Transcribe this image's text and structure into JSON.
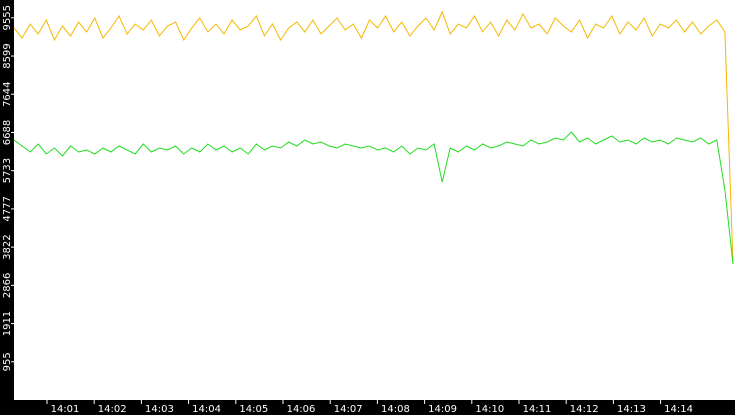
{
  "chart_data": {
    "type": "line",
    "x_labels": [
      "14:01",
      "14:02",
      "14:03",
      "14:04",
      "14:05",
      "14:06",
      "14:07",
      "14:08",
      "14:09",
      "14:10",
      "14:11",
      "14:12",
      "14:13",
      "14:14"
    ],
    "ylim": [
      0,
      10000
    ],
    "yticks": [
      955,
      1911,
      2866,
      3822,
      4777,
      5733,
      6688,
      7644,
      8599,
      9555
    ],
    "series": [
      {
        "color": "#f5b800",
        "values": [
          9300,
          9050,
          9400,
          9150,
          9500,
          9000,
          9350,
          9100,
          9450,
          9200,
          9550,
          9050,
          9300,
          9600,
          9150,
          9400,
          9250,
          9500,
          9100,
          9350,
          9450,
          9000,
          9300,
          9550,
          9200,
          9400,
          9150,
          9500,
          9250,
          9350,
          9600,
          9100,
          9400,
          9000,
          9300,
          9450,
          9200,
          9500,
          9150,
          9350,
          9550,
          9250,
          9400,
          9050,
          9500,
          9300,
          9600,
          9200,
          9450,
          9100,
          9350,
          9550,
          9250,
          9700,
          9150,
          9400,
          9300,
          9600,
          9200,
          9450,
          9100,
          9500,
          9250,
          9650,
          9300,
          9400,
          9150,
          9550,
          9350,
          9200,
          9500,
          9050,
          9400,
          9300,
          9600,
          9150,
          9450,
          9250,
          9550,
          9100,
          9400,
          9300,
          9500,
          9200,
          9450,
          9150,
          9350,
          9500,
          9200,
          3400
        ]
      },
      {
        "color": "#22dd22",
        "values": [
          6500,
          6350,
          6200,
          6400,
          6150,
          6300,
          6100,
          6350,
          6200,
          6250,
          6150,
          6300,
          6200,
          6350,
          6250,
          6150,
          6400,
          6200,
          6300,
          6250,
          6350,
          6150,
          6300,
          6200,
          6400,
          6250,
          6350,
          6200,
          6300,
          6150,
          6400,
          6250,
          6350,
          6300,
          6450,
          6350,
          6500,
          6400,
          6450,
          6350,
          6300,
          6400,
          6350,
          6300,
          6350,
          6250,
          6300,
          6200,
          6350,
          6150,
          6300,
          6250,
          6400,
          5450,
          6300,
          6200,
          6350,
          6250,
          6400,
          6300,
          6350,
          6450,
          6400,
          6350,
          6500,
          6400,
          6450,
          6550,
          6500,
          6700,
          6450,
          6550,
          6400,
          6500,
          6600,
          6450,
          6500,
          6400,
          6550,
          6450,
          6500,
          6400,
          6550,
          6500,
          6450,
          6550,
          6400,
          6500,
          5250,
          3400
        ]
      }
    ]
  }
}
